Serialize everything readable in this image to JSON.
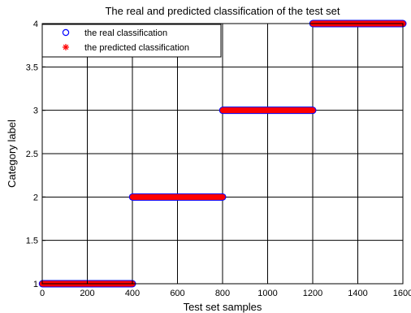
{
  "chart_data": {
    "type": "scatter",
    "title": "The real and predicted classification of the test set",
    "xlabel": "Test set samples",
    "ylabel": "Category label",
    "xlim": [
      0,
      1600
    ],
    "ylim": [
      1,
      4
    ],
    "xticks": [
      0,
      200,
      400,
      600,
      800,
      1000,
      1200,
      1400,
      1600
    ],
    "yticks": [
      1,
      1.5,
      2,
      2.5,
      3,
      3.5,
      4
    ],
    "grid": true,
    "legend_position": "top-left",
    "series": [
      {
        "name": "the real classification",
        "marker": "circle",
        "color": "#0000ff",
        "segments": [
          {
            "x_start": 1,
            "x_end": 400,
            "y": 1
          },
          {
            "x_start": 401,
            "x_end": 800,
            "y": 2
          },
          {
            "x_start": 801,
            "x_end": 1200,
            "y": 3
          },
          {
            "x_start": 1201,
            "x_end": 1600,
            "y": 4
          }
        ]
      },
      {
        "name": "the predicted classification",
        "marker": "asterisk",
        "color": "#ff0000",
        "segments": [
          {
            "x_start": 1,
            "x_end": 400,
            "y": 1
          },
          {
            "x_start": 401,
            "x_end": 800,
            "y": 2
          },
          {
            "x_start": 801,
            "x_end": 1200,
            "y": 3
          },
          {
            "x_start": 1201,
            "x_end": 1600,
            "y": 4
          }
        ]
      }
    ]
  }
}
